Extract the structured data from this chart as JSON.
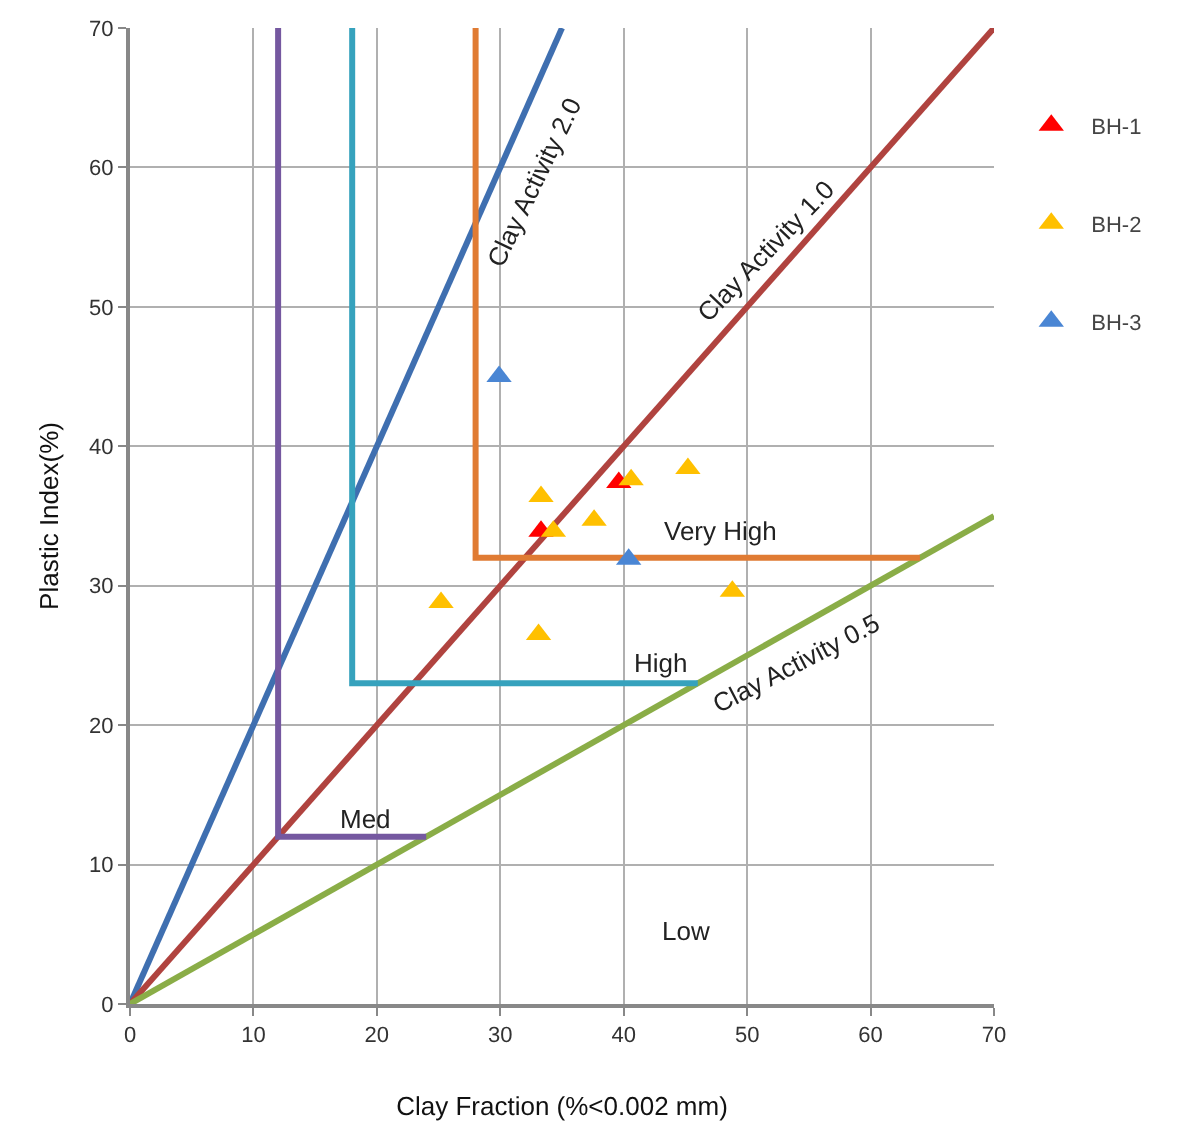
{
  "chart_data": {
    "type": "scatter",
    "xlabel": "Clay Fraction (%<0.002 mm)",
    "ylabel": "Plastic Index(%)",
    "xlim": [
      0,
      70
    ],
    "ylim": [
      0,
      70
    ],
    "xticks": [
      0,
      10,
      20,
      30,
      40,
      50,
      60,
      70
    ],
    "yticks": [
      0,
      10,
      20,
      30,
      40,
      50,
      60,
      70
    ],
    "grid": true,
    "legend": "top right",
    "series": [
      {
        "type": "line",
        "color": "#3f6fb0",
        "x": [
          0,
          35
        ],
        "values": [
          0,
          70
        ]
      },
      {
        "type": "line",
        "color": "#b0433f",
        "x": [
          0,
          70
        ],
        "values": [
          0,
          70
        ]
      },
      {
        "type": "line",
        "color": "#8aad47",
        "x": [
          0,
          70
        ],
        "values": [
          0,
          35
        ]
      },
      {
        "type": "line",
        "color": "#7558a0",
        "x": [
          12,
          12,
          24
        ],
        "values": [
          70,
          12,
          12
        ]
      },
      {
        "type": "line",
        "color": "#36a2bd",
        "x": [
          18,
          18,
          46
        ],
        "values": [
          70,
          23,
          23
        ]
      },
      {
        "type": "line",
        "color": "#e07b33",
        "x": [
          28,
          28,
          64
        ],
        "values": [
          70,
          32,
          32
        ]
      },
      {
        "name": "BH-1",
        "marker": "triangle",
        "color": "#ff0000",
        "x": [
          39.6,
          33.3
        ],
        "values": [
          37.4,
          33.9
        ]
      },
      {
        "name": "BH-2",
        "marker": "triangle",
        "color": "#ffc000",
        "x": [
          33.3,
          40.6,
          45.2,
          34.3,
          37.6,
          25.2,
          33.1,
          48.8
        ],
        "values": [
          36.4,
          37.6,
          38.4,
          33.9,
          34.7,
          28.8,
          26.5,
          29.6
        ]
      },
      {
        "name": "BH-3",
        "marker": "triangle",
        "color": "#4a86d4",
        "x": [
          29.9,
          40.4
        ],
        "values": [
          45.0,
          31.9
        ]
      }
    ],
    "annotations": [
      "Clay Activity 2.0",
      "Clay Activity 1.0",
      "Clay Activity 0.5",
      "Med",
      "High",
      "Very High",
      "Low"
    ]
  }
}
